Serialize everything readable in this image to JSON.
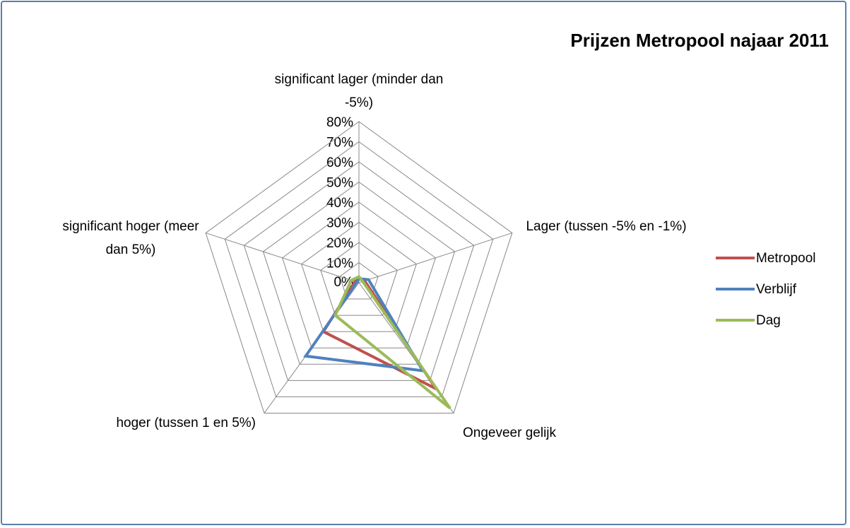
{
  "chart_data": {
    "type": "radar",
    "title": "Prijzen Metropool najaar 2011",
    "categories": [
      "significant lager (minder dan -5%)",
      "Lager (tussen -5% en -1%)",
      "Ongeveer gelijk",
      "hoger (tussen 1 en 5%)",
      "significant hoger (meer dan 5%)"
    ],
    "series": [
      {
        "name": "Metropool",
        "color": "#c0504d",
        "values": [
          2,
          3,
          65,
          30,
          2
        ]
      },
      {
        "name": "Verblijf",
        "color": "#4f81bd",
        "values": [
          2,
          5,
          54,
          45,
          1
        ]
      },
      {
        "name": "Dag",
        "color": "#9bbb59",
        "values": [
          3,
          2,
          77,
          20,
          4
        ]
      }
    ],
    "ylim": [
      0,
      80
    ],
    "yticks": [
      {
        "value": 0,
        "label": "0%"
      },
      {
        "value": 10,
        "label": "10%"
      },
      {
        "value": 20,
        "label": "20%"
      },
      {
        "value": 30,
        "label": "30%"
      },
      {
        "value": 40,
        "label": "40%"
      },
      {
        "value": 50,
        "label": "50%"
      },
      {
        "value": 60,
        "label": "60%"
      },
      {
        "value": 70,
        "label": "70%"
      },
      {
        "value": 80,
        "label": "80%"
      }
    ],
    "grid": true,
    "legend": "right"
  }
}
